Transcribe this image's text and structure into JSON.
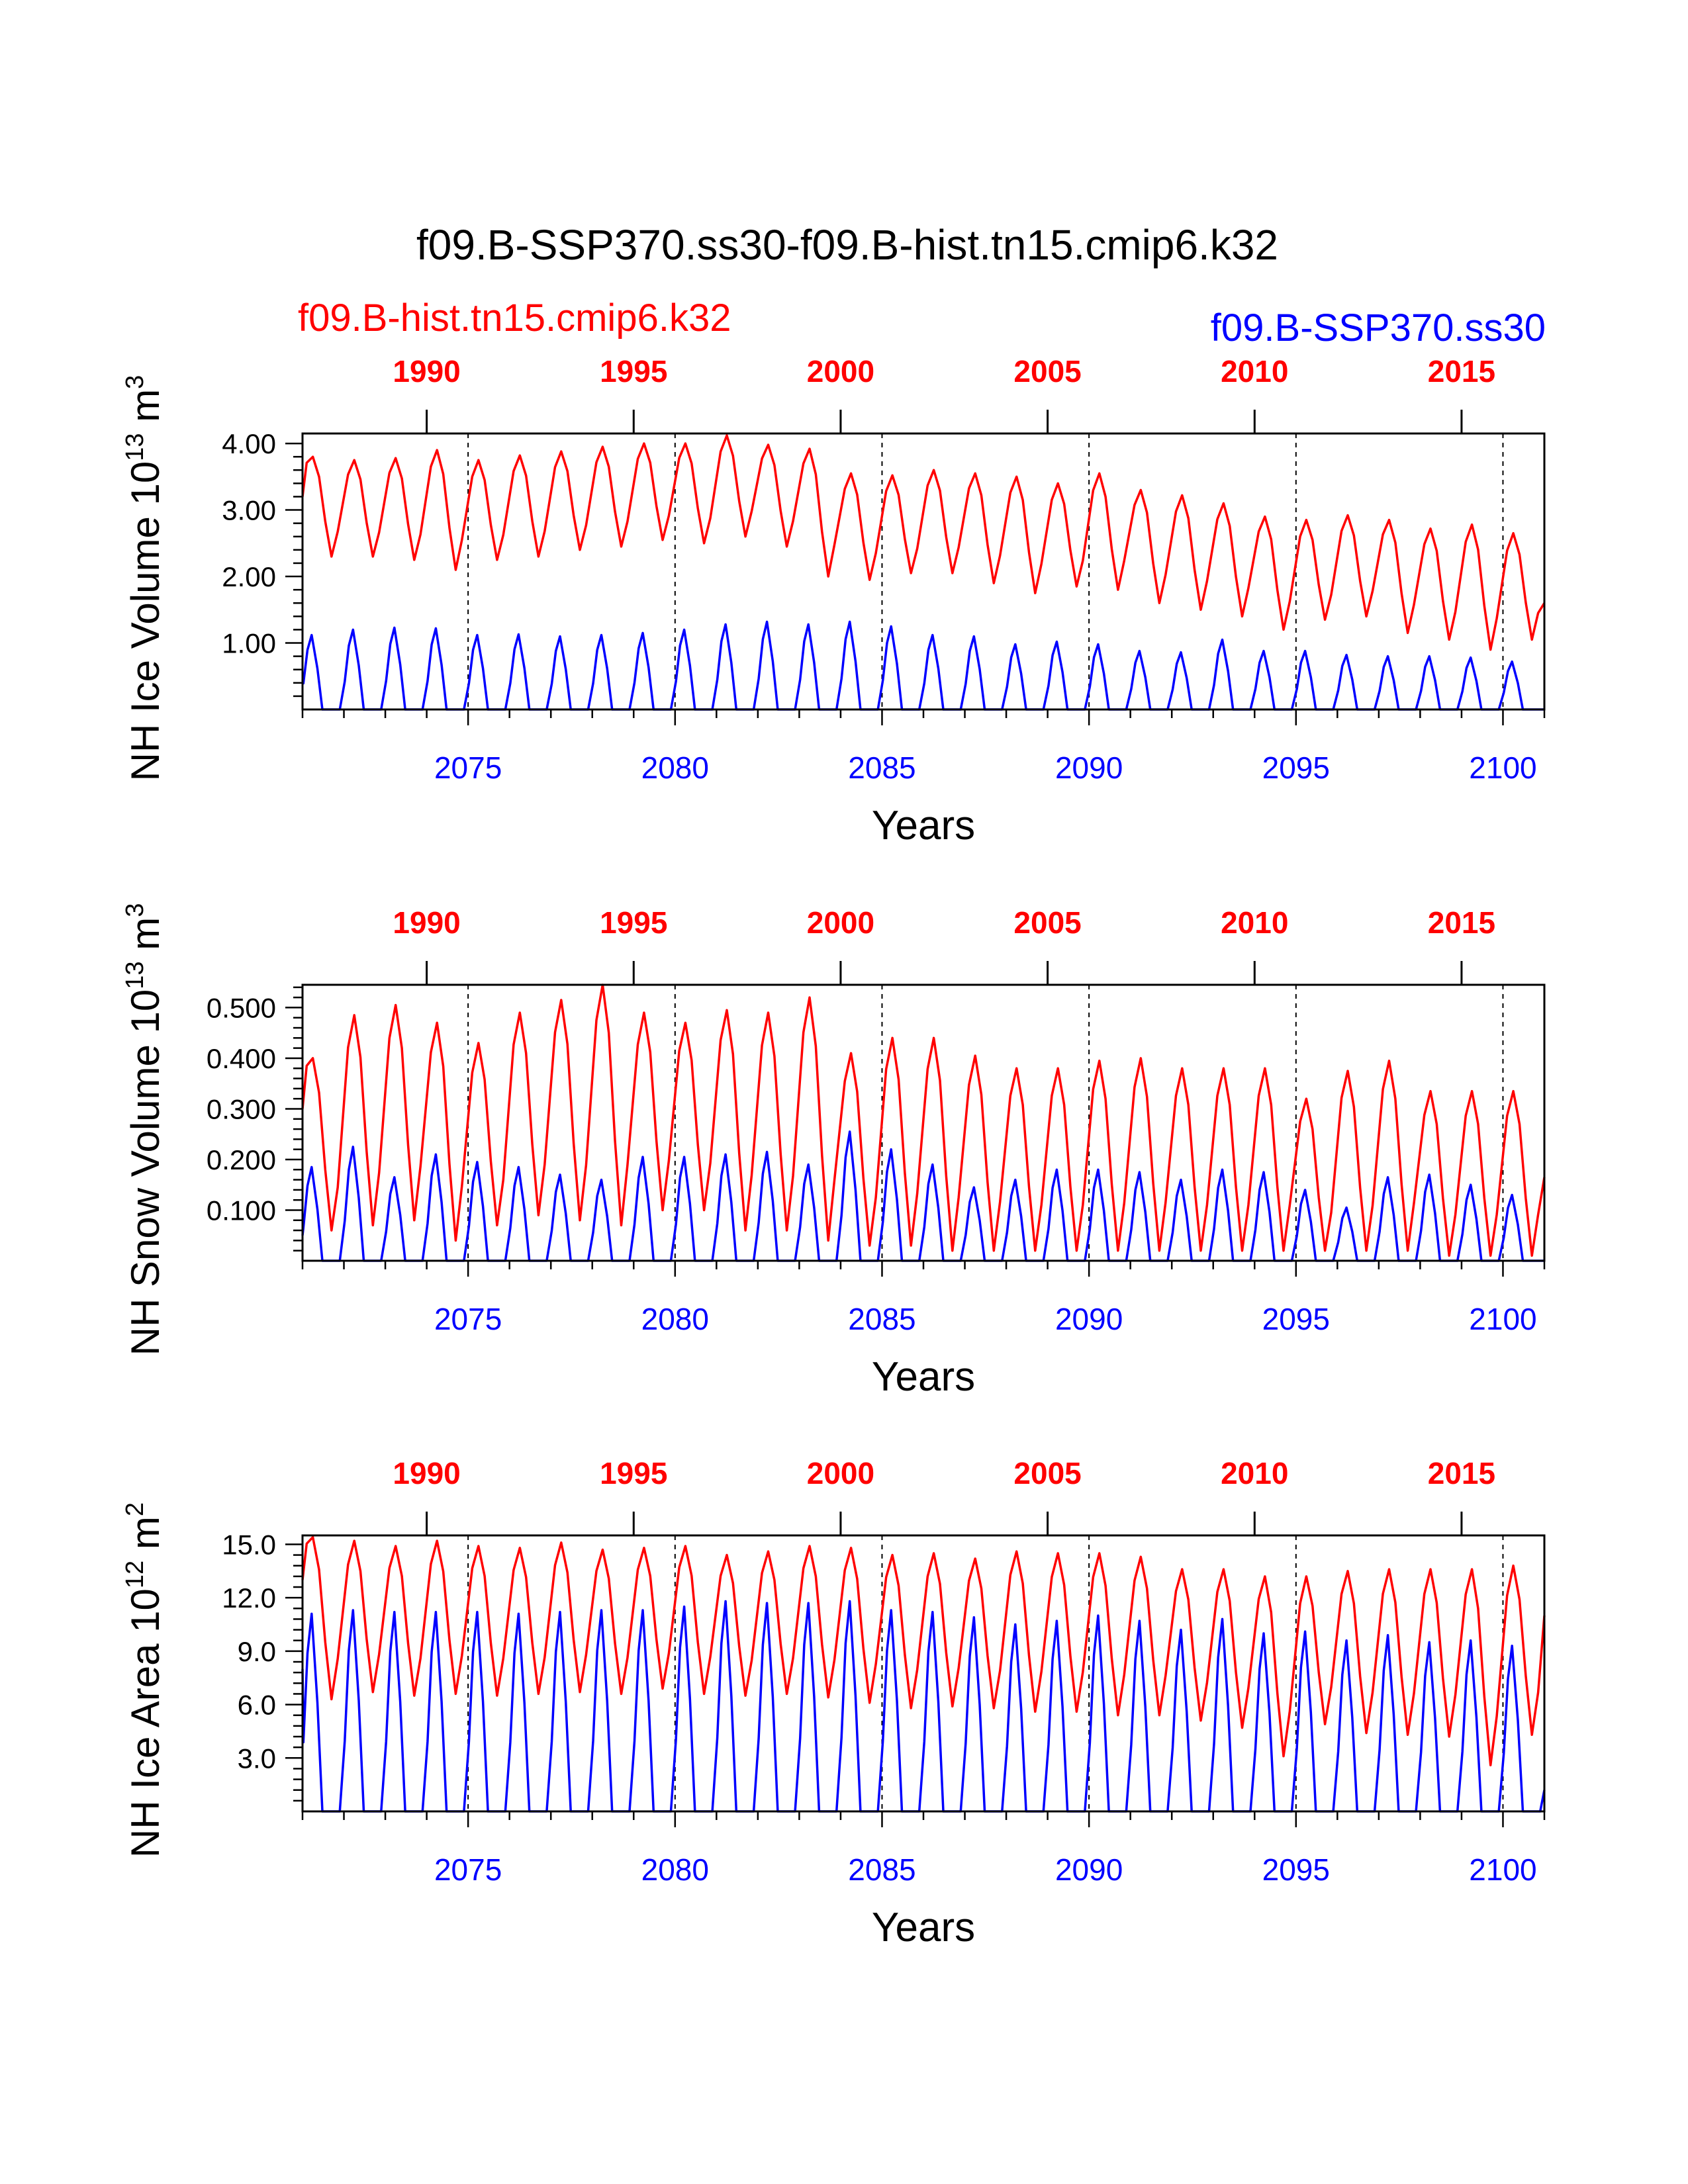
{
  "figure": {
    "title": "f09.B-SSP370.ss30-f09.B-hist.tn15.cmip6.k32",
    "left_legend": "f09.B-hist.tn15.cmip6.k32",
    "right_legend": "f09.B-SSP370.ss30",
    "colors": {
      "hist": "#ff0000",
      "ssp": "#0000ff",
      "axis": "#000000"
    }
  },
  "chart_data": [
    {
      "type": "line",
      "ylabel": "NH Ice Volume 10",
      "ylabel_exp": "13",
      "ylabel_unit": "m",
      "ylabel_unit_exp": "3",
      "xlabel": "Years",
      "xlim": [
        2071,
        2101
      ],
      "ylim": [
        0,
        4.15
      ],
      "yticks": [
        1.0,
        2.0,
        3.0,
        4.0
      ],
      "ytick_labels": [
        "1.00",
        "2.00",
        "3.00",
        "4.00"
      ],
      "bottom_ticks": [
        2075,
        2080,
        2085,
        2090,
        2095,
        2100
      ],
      "top_ticks": [
        1990,
        1995,
        2000,
        2005,
        2010,
        2015
      ],
      "series": [
        {
          "name": "f09.B-hist.tn15.cmip6.k32",
          "role": "hist",
          "start_min": 3.2,
          "annual_max": [
            3.8,
            3.75,
            3.78,
            3.9,
            3.75,
            3.82,
            3.88,
            3.95,
            4.0,
            4.0,
            4.12,
            3.98,
            3.92,
            3.55,
            3.52,
            3.6,
            3.55,
            3.5,
            3.4,
            3.55,
            3.3,
            3.22,
            3.1,
            2.9,
            2.85,
            2.92,
            2.85,
            2.72,
            2.78,
            2.65
          ],
          "annual_min": [
            2.3,
            2.3,
            2.25,
            2.1,
            2.25,
            2.3,
            2.4,
            2.45,
            2.55,
            2.5,
            2.6,
            2.45,
            2.0,
            1.95,
            2.05,
            2.05,
            1.9,
            1.75,
            1.85,
            1.8,
            1.6,
            1.5,
            1.4,
            1.2,
            1.35,
            1.4,
            1.15,
            1.05,
            0.9,
            1.05
          ],
          "end_value": 1.6
        },
        {
          "name": "f09.B-SSP370.ss30",
          "role": "ssp",
          "annual_max": [
            1.12,
            1.2,
            1.23,
            1.22,
            1.12,
            1.13,
            1.1,
            1.12,
            1.15,
            1.2,
            1.28,
            1.32,
            1.28,
            1.32,
            1.25,
            1.12,
            1.1,
            0.98,
            1.02,
            0.98,
            0.88,
            0.86,
            1.05,
            0.88,
            0.88,
            0.82,
            0.8,
            0.8,
            0.78,
            0.72
          ],
          "annual_min": [
            0.0
          ],
          "start_value": 0.45
        }
      ]
    },
    {
      "type": "line",
      "ylabel": "NH Snow Volume 10",
      "ylabel_exp": "13",
      "ylabel_unit": "m",
      "ylabel_unit_exp": "3",
      "xlabel": "Years",
      "xlim": [
        2071,
        2101
      ],
      "ylim": [
        0,
        0.545
      ],
      "yticks": [
        0.1,
        0.2,
        0.3,
        0.4,
        0.5
      ],
      "ytick_labels": [
        "0.100",
        "0.200",
        "0.300",
        "0.400",
        "0.500"
      ],
      "bottom_ticks": [
        2075,
        2080,
        2085,
        2090,
        2095,
        2100
      ],
      "top_ticks": [
        1990,
        1995,
        2000,
        2005,
        2010,
        2015
      ],
      "series": [
        {
          "name": "f09.B-hist.tn15.cmip6.k32",
          "role": "hist",
          "start_min": 0.3,
          "annual_max": [
            0.4,
            0.485,
            0.505,
            0.47,
            0.43,
            0.49,
            0.515,
            0.545,
            0.49,
            0.47,
            0.495,
            0.49,
            0.52,
            0.41,
            0.44,
            0.44,
            0.405,
            0.38,
            0.38,
            0.395,
            0.4,
            0.38,
            0.38,
            0.38,
            0.32,
            0.375,
            0.395,
            0.335,
            0.335,
            0.335
          ],
          "annual_min": [
            0.06,
            0.07,
            0.08,
            0.04,
            0.07,
            0.09,
            0.08,
            0.07,
            0.1,
            0.1,
            0.06,
            0.06,
            0.04,
            0.03,
            0.03,
            0.02,
            0.02,
            0.02,
            0.02,
            0.02,
            0.02,
            0.02,
            0.02,
            0.02,
            0.02,
            0.02,
            0.02,
            0.01,
            0.01,
            0.01
          ],
          "end_value": 0.165
        },
        {
          "name": "f09.B-SSP370.ss30",
          "role": "ssp",
          "annual_max": [
            0.185,
            0.225,
            0.165,
            0.21,
            0.195,
            0.185,
            0.17,
            0.16,
            0.205,
            0.205,
            0.21,
            0.215,
            0.19,
            0.255,
            0.22,
            0.19,
            0.145,
            0.16,
            0.18,
            0.18,
            0.175,
            0.16,
            0.18,
            0.175,
            0.14,
            0.105,
            0.165,
            0.17,
            0.15,
            0.13
          ],
          "annual_min": [
            0.0
          ],
          "start_value": 0.05
        }
      ]
    },
    {
      "type": "line",
      "ylabel": "NH Ice Area 10",
      "ylabel_exp": "12",
      "ylabel_unit": "m",
      "ylabel_unit_exp": "2",
      "xlabel": "Years",
      "xlim": [
        2071,
        2101
      ],
      "ylim": [
        0,
        15.5
      ],
      "yticks": [
        3.0,
        6.0,
        9.0,
        12.0,
        15.0
      ],
      "ytick_labels": [
        "3.0",
        "6.0",
        "9.0",
        "12.0",
        "15.0"
      ],
      "bottom_ticks": [
        2075,
        2080,
        2085,
        2090,
        2095,
        2100
      ],
      "top_ticks": [
        1990,
        1995,
        2000,
        2005,
        2010,
        2015
      ],
      "series": [
        {
          "name": "f09.B-hist.tn15.cmip6.k32",
          "role": "hist",
          "start_min": 13.0,
          "annual_max": [
            15.4,
            15.2,
            14.9,
            15.2,
            14.9,
            14.8,
            15.1,
            14.7,
            14.8,
            14.9,
            14.4,
            14.6,
            14.9,
            14.8,
            14.4,
            14.5,
            14.2,
            14.6,
            14.5,
            14.5,
            14.3,
            13.6,
            13.6,
            13.2,
            13.2,
            13.5,
            13.6,
            13.6,
            13.6,
            13.8
          ],
          "annual_min": [
            6.3,
            6.7,
            6.5,
            6.6,
            6.5,
            6.6,
            6.7,
            6.6,
            6.9,
            6.6,
            6.5,
            6.6,
            6.4,
            6.1,
            5.8,
            5.9,
            5.8,
            5.6,
            5.6,
            5.4,
            5.4,
            5.1,
            4.7,
            3.1,
            4.9,
            4.4,
            4.3,
            4.2,
            2.6,
            4.3
          ],
          "end_value": 11.0
        },
        {
          "name": "f09.B-SSP370.ss30",
          "role": "ssp",
          "annual_max": [
            11.1,
            11.3,
            11.2,
            11.2,
            11.2,
            11.1,
            11.2,
            11.3,
            11.3,
            11.5,
            11.8,
            11.7,
            11.7,
            11.8,
            11.3,
            11.2,
            10.9,
            10.5,
            10.7,
            11.0,
            10.7,
            10.2,
            10.8,
            10.0,
            10.1,
            9.6,
            9.9,
            9.5,
            9.6,
            9.3
          ],
          "annual_min": [
            0.0
          ],
          "start_value": 8.0,
          "end_value": 1.2
        }
      ]
    }
  ]
}
